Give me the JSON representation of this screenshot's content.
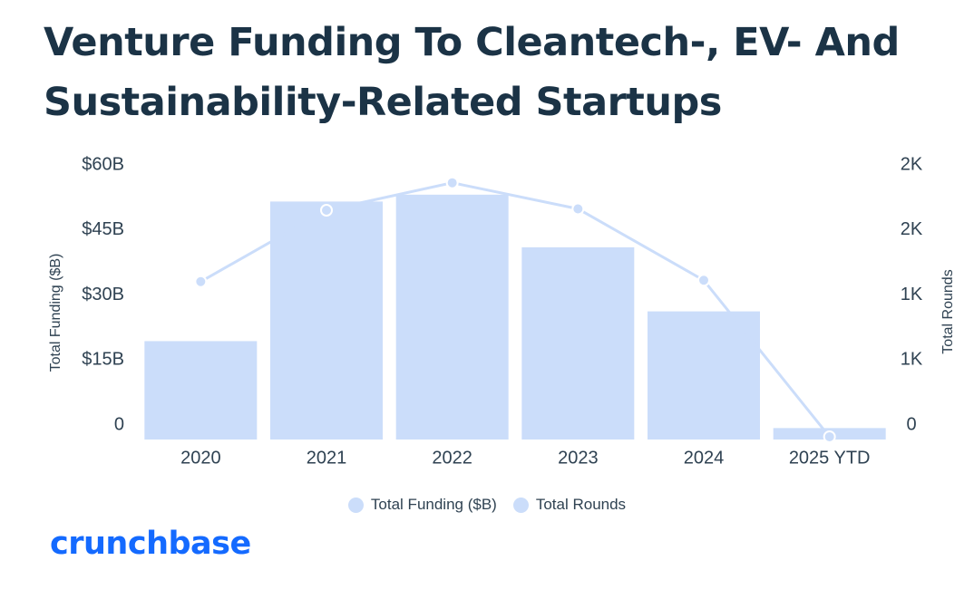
{
  "title": "Venture Funding To Cleantech-, EV- And Sustainability-Related Startups",
  "brand": "crunchbase",
  "colors": {
    "bar": "#cbddfa",
    "line": "#cbddfa",
    "text": "#2f4252",
    "title": "#1b3346",
    "brand": "#146aff"
  },
  "chart_data": {
    "type": "bar",
    "categories": [
      "2020",
      "2021",
      "2022",
      "2023",
      "2024",
      "2025 YTD"
    ],
    "series": [
      {
        "name": "Total Funding ($B)",
        "type": "bar",
        "axis": "left",
        "values": [
          21.5,
          52,
          53.5,
          42,
          28,
          2.5
        ]
      },
      {
        "name": "Total Rounds",
        "type": "line",
        "axis": "right",
        "values": [
          1150,
          1670,
          1870,
          1680,
          1160,
          20
        ]
      }
    ],
    "left_axis": {
      "label": "Total Funding ($B)",
      "ylim": [
        0,
        60
      ],
      "ticks": [
        0,
        15,
        30,
        45,
        60
      ],
      "tick_labels": [
        "0",
        "$15B",
        "$30B",
        "$45B",
        "$60B"
      ]
    },
    "right_axis": {
      "label": "Total Rounds",
      "ylim": [
        0,
        2000
      ],
      "ticks": [
        0,
        500,
        1000,
        1500,
        2000
      ],
      "tick_labels": [
        "0",
        "1K",
        "1K",
        "2K",
        "2K"
      ]
    },
    "legend": [
      "Total Funding ($B)",
      "Total Rounds"
    ],
    "legend_position": "bottom"
  }
}
